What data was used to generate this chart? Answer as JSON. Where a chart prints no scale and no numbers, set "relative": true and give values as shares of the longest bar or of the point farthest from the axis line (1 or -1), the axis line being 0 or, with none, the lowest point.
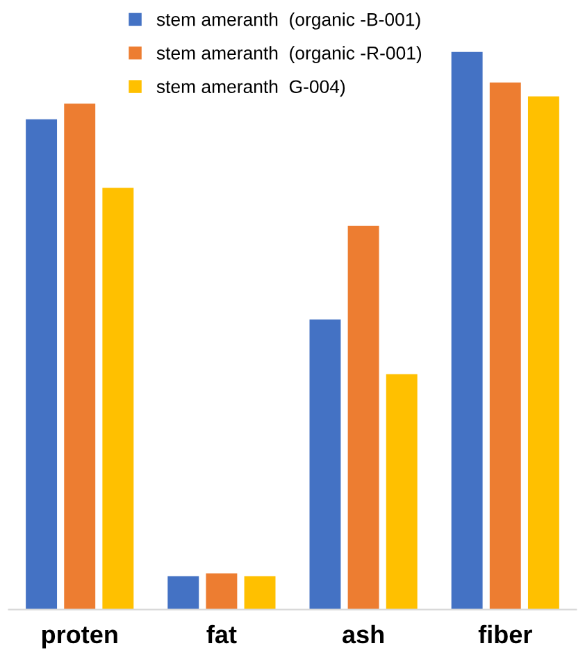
{
  "chart_data": {
    "type": "bar",
    "relative": true,
    "categories": [
      "proten",
      "fat",
      "ash",
      "fiber"
    ],
    "series": [
      {
        "name": "stem ameranth  (organic -B-001)",
        "color": "#4472c4",
        "values": [
          0.879,
          0.06,
          0.52,
          1.0
        ]
      },
      {
        "name": "stem ameranth  (organic -R-001)",
        "color": "#ed7d31",
        "values": [
          0.907,
          0.065,
          0.688,
          0.945
        ]
      },
      {
        "name": "stem ameranth  G-004)",
        "color": "#ffc000",
        "values": [
          0.756,
          0.06,
          0.422,
          0.92
        ]
      }
    ],
    "legend": "top",
    "grid": false
  }
}
